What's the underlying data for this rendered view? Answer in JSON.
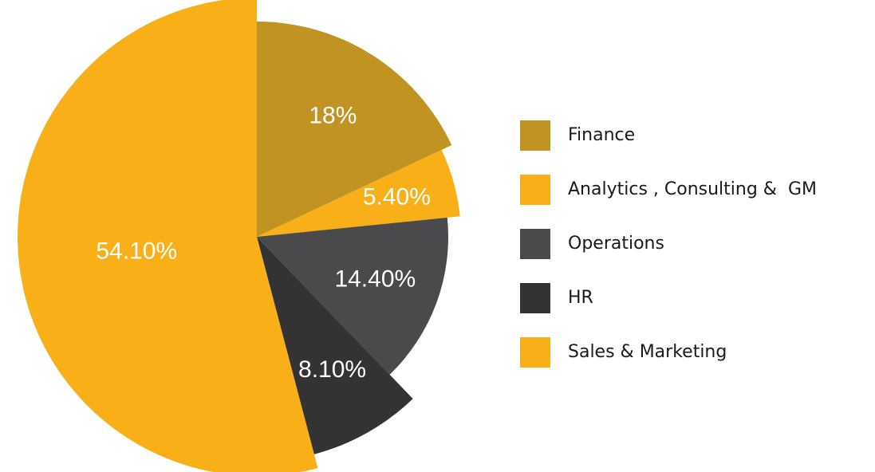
{
  "chart_data": {
    "type": "pie",
    "categories": [
      "Finance",
      "Analytics , Consulting &  GM",
      "Operations",
      "HR",
      "Sales & Marketing"
    ],
    "values": [
      18,
      5.4,
      14.4,
      8.1,
      54.1
    ],
    "value_labels": [
      "18%",
      "5.40%",
      "14.40%",
      "8.10%",
      "54.10%"
    ],
    "colors": [
      "#c09323",
      "#f9af17",
      "#4a4a4c",
      "#333333",
      "#f9af17"
    ],
    "legend": "right"
  }
}
